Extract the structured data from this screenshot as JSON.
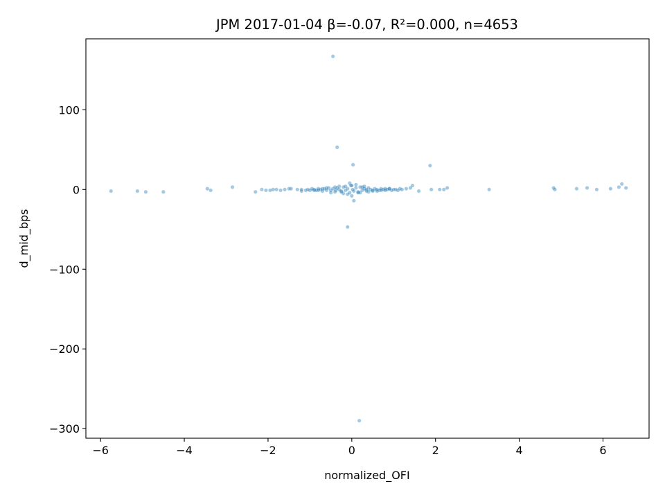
{
  "chart_data": {
    "type": "scatter",
    "title": "JPM 2017-01-04  β=-0.07, R²=0.000, n=4653",
    "xlabel": "normalized_OFI",
    "ylabel": "d_mid_bps",
    "xlim": [
      -6.35,
      7.1
    ],
    "ylim": [
      -312,
      189
    ],
    "xticks": [
      -6,
      -4,
      -2,
      0,
      2,
      4,
      6
    ],
    "xtick_labels": [
      "−6",
      "−4",
      "−2",
      "0",
      "2",
      "4",
      "6"
    ],
    "yticks": [
      -300,
      -200,
      -100,
      0,
      100
    ],
    "ytick_labels": [
      "−300",
      "−200",
      "−100",
      "0",
      "100"
    ],
    "grid": false,
    "legend": "none",
    "marker_color": "#1f77b4",
    "marker_alpha": 0.4,
    "series": [
      {
        "x": [
          -5.75,
          -5.12,
          -4.92,
          -4.5,
          -3.45,
          -3.37,
          -2.85,
          -2.3,
          -2.15,
          -2.05,
          -1.95,
          -1.88,
          -1.8,
          -1.7,
          -1.6,
          -1.5,
          -1.45,
          -1.3,
          -1.2,
          -1.1,
          -1.05,
          -1.0,
          -0.95,
          -0.9,
          -0.85,
          -0.8,
          -0.75,
          -0.7,
          -0.65,
          -0.6,
          -0.55,
          -0.5,
          -0.45,
          -0.4,
          -0.35,
          -0.3,
          -0.25,
          -0.2,
          -0.15,
          -0.1,
          -0.05,
          0.0,
          0.05,
          0.1,
          0.15,
          0.2,
          0.25,
          0.3,
          0.35,
          0.4,
          0.45,
          0.5,
          0.55,
          0.6,
          0.65,
          0.7,
          0.75,
          0.8,
          0.85,
          0.9,
          0.95,
          1.0,
          1.05,
          1.1,
          1.15,
          1.2,
          1.3,
          1.4,
          1.45,
          1.6,
          1.9,
          2.1,
          2.2,
          2.28,
          3.28,
          4.82,
          4.85,
          5.37,
          5.62,
          5.85,
          6.18,
          6.38,
          6.45,
          6.55,
          -0.5,
          -0.3,
          -0.2,
          -0.1,
          0.1,
          0.2,
          0.3,
          0.5,
          -0.4,
          0.0,
          0.4,
          -0.7,
          0.7,
          -0.9,
          0.9,
          -0.25,
          0.25,
          -0.6,
          0.6,
          -0.15,
          0.15,
          0.02,
          -1.2,
          -0.38,
          -0.02,
          1.87,
          0.03,
          -0.1,
          0.18,
          -0.35,
          0.35,
          -0.8,
          0.8,
          -0.05,
          0.05,
          -0.45
        ],
        "y": [
          -2,
          -2,
          -3,
          -3,
          1,
          -1,
          3,
          -3,
          0,
          -1,
          -1,
          0,
          0,
          -1,
          0,
          1,
          1,
          0,
          0,
          -1,
          0,
          -1,
          1,
          0,
          -1,
          1,
          0,
          -2,
          1,
          -1,
          2,
          -1,
          1,
          -3,
          2,
          0,
          -2,
          3,
          -1,
          1,
          -4,
          5,
          -2,
          2,
          -3,
          3,
          -1,
          1,
          -2,
          2,
          0,
          -1,
          1,
          0,
          -1,
          1,
          0,
          -1,
          0,
          1,
          -1,
          0,
          0,
          -1,
          1,
          0,
          1,
          2,
          5,
          -2,
          0,
          0,
          0,
          2,
          0,
          2,
          0,
          1,
          2,
          0,
          1,
          3,
          7,
          2,
          -4,
          4,
          -5,
          -6,
          6,
          -4,
          4,
          -2,
          3,
          -8,
          -3,
          1,
          -1,
          -1,
          1,
          -3,
          3,
          2,
          -2,
          4,
          -4,
          0,
          -2,
          -1,
          5,
          30,
          31,
          -47,
          -290,
          53,
          0,
          -1,
          1,
          8,
          -14,
          167
        ]
      }
    ]
  }
}
